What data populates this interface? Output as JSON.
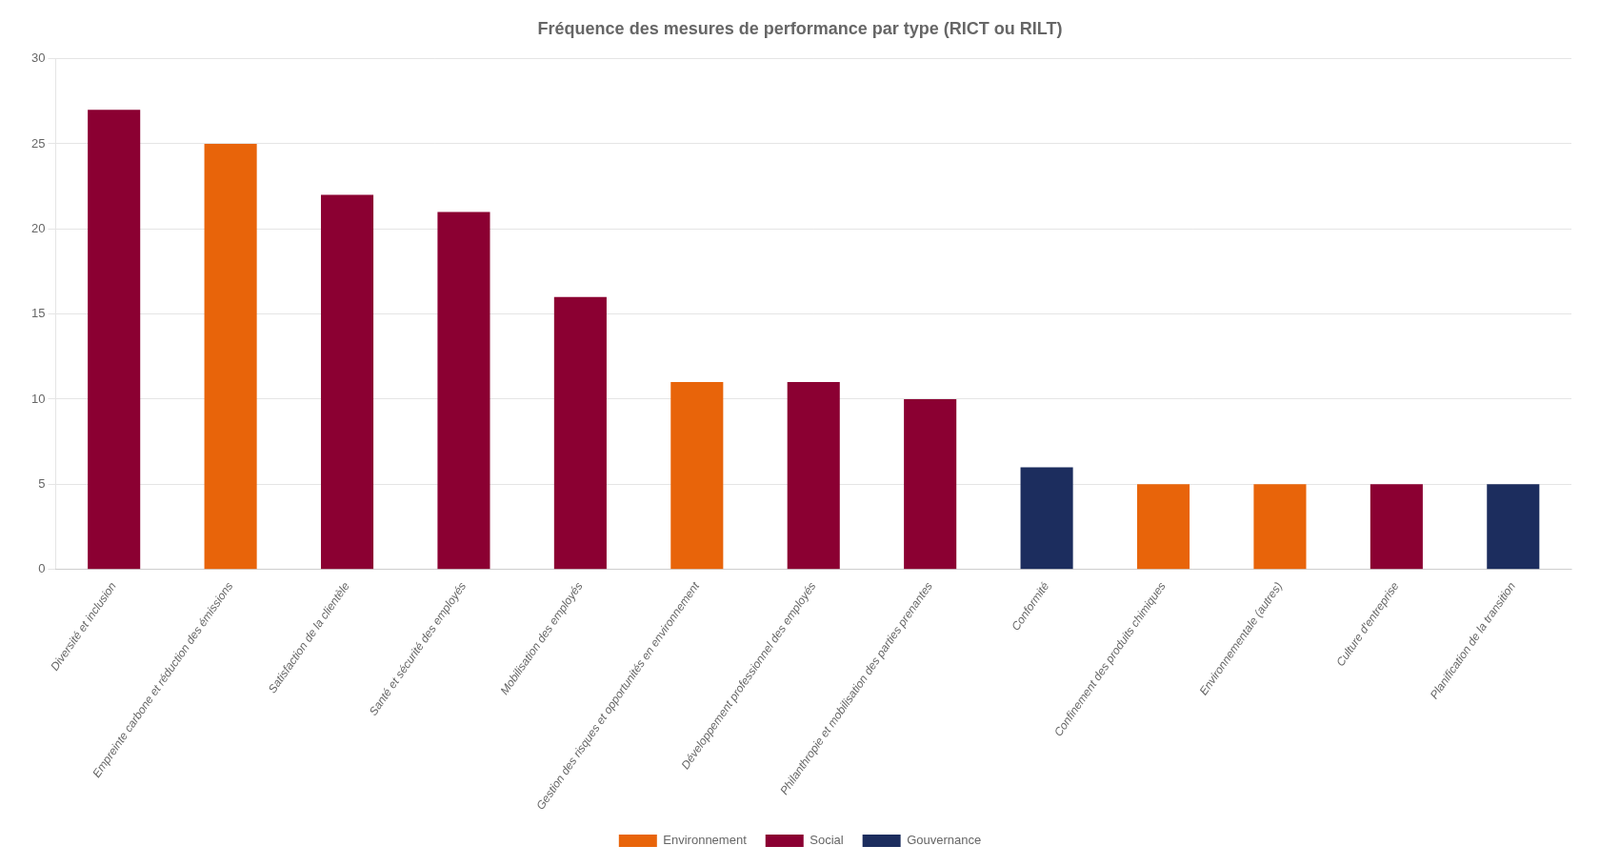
{
  "chart_data": {
    "type": "bar",
    "title": "Fréquence des mesures de performance par type (RICT ou RILT)",
    "categories": [
      "Diversité et inclusion",
      "Empreinte carbone et réduction des émissions",
      "Satisfaction de la clientèle",
      "Santé et sécurité des employés",
      "Mobilisation des employés",
      "Gestion des risques et opportunités en environnement",
      "Développement professionnel des employés",
      "Philanthropie et mobilisation des parties prenantes",
      "Conformité",
      "Confinement des produits chimiques",
      "Environnementale (autres)",
      "Culture d'entreprise",
      "Planification de la transition"
    ],
    "series": [
      {
        "name": "Environnement",
        "color": "#E8640A",
        "values": [
          null,
          25,
          null,
          null,
          null,
          11,
          null,
          null,
          null,
          5,
          5,
          null,
          null
        ]
      },
      {
        "name": "Social",
        "color": "#8B0032",
        "values": [
          27,
          null,
          22,
          21,
          16,
          null,
          11,
          10,
          null,
          null,
          null,
          5,
          null
        ]
      },
      {
        "name": "Gouvernance",
        "color": "#1C2D5E",
        "values": [
          null,
          null,
          null,
          null,
          null,
          null,
          null,
          null,
          6,
          null,
          null,
          null,
          5
        ]
      }
    ],
    "ylim": [
      0,
      30
    ],
    "yticks": [
      0,
      5,
      10,
      15,
      20,
      25,
      30
    ],
    "grid": true,
    "legend": "bottom"
  }
}
